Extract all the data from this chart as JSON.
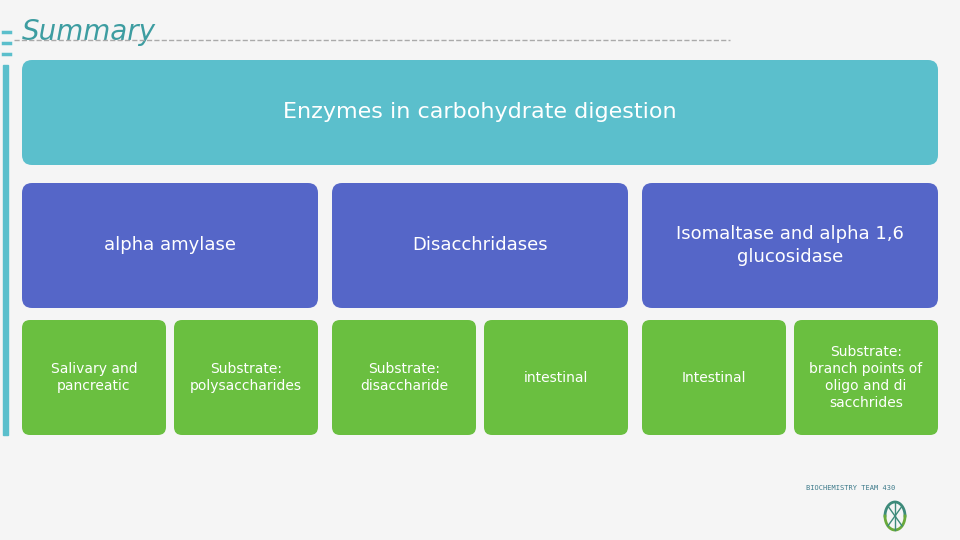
{
  "title": "Summary",
  "bg_color": "#f5f5f5",
  "title_color": "#3d9da1",
  "title_fontsize": 20,
  "separator_color": "#aaaaaa",
  "top_box": {
    "text": "Enzymes in carbohydrate digestion",
    "bg_color": "#5bbfcc",
    "text_color": "#ffffff",
    "fontsize": 16
  },
  "mid_boxes": [
    {
      "text": "alpha amylase",
      "bg_color": "#5566c8",
      "text_color": "#ffffff",
      "fontsize": 13
    },
    {
      "text": "Disacchridases",
      "bg_color": "#5566c8",
      "text_color": "#ffffff",
      "fontsize": 13
    },
    {
      "text": "Isomaltase and alpha 1,6\nglucosidase",
      "bg_color": "#5566c8",
      "text_color": "#ffffff",
      "fontsize": 13
    }
  ],
  "bot_boxes": [
    {
      "text": "Salivary and\npancreatic",
      "bg_color": "#6abf40",
      "text_color": "#ffffff",
      "fontsize": 10
    },
    {
      "text": "Substrate:\npolysaccharides",
      "bg_color": "#6abf40",
      "text_color": "#ffffff",
      "fontsize": 10
    },
    {
      "text": "Substrate:\ndisaccharide",
      "bg_color": "#6abf40",
      "text_color": "#ffffff",
      "fontsize": 10
    },
    {
      "text": "intestinal",
      "bg_color": "#6abf40",
      "text_color": "#ffffff",
      "fontsize": 10
    },
    {
      "text": "Intestinal",
      "bg_color": "#6abf40",
      "text_color": "#ffffff",
      "fontsize": 10
    },
    {
      "text": "Substrate:\nbranch points of\noligo and di\nsacchrides",
      "bg_color": "#6abf40",
      "text_color": "#ffffff",
      "fontsize": 10
    }
  ],
  "left_bar_color": "#5bbfcc",
  "logo_text": "BIOCHEMISTRY TEAM 430"
}
